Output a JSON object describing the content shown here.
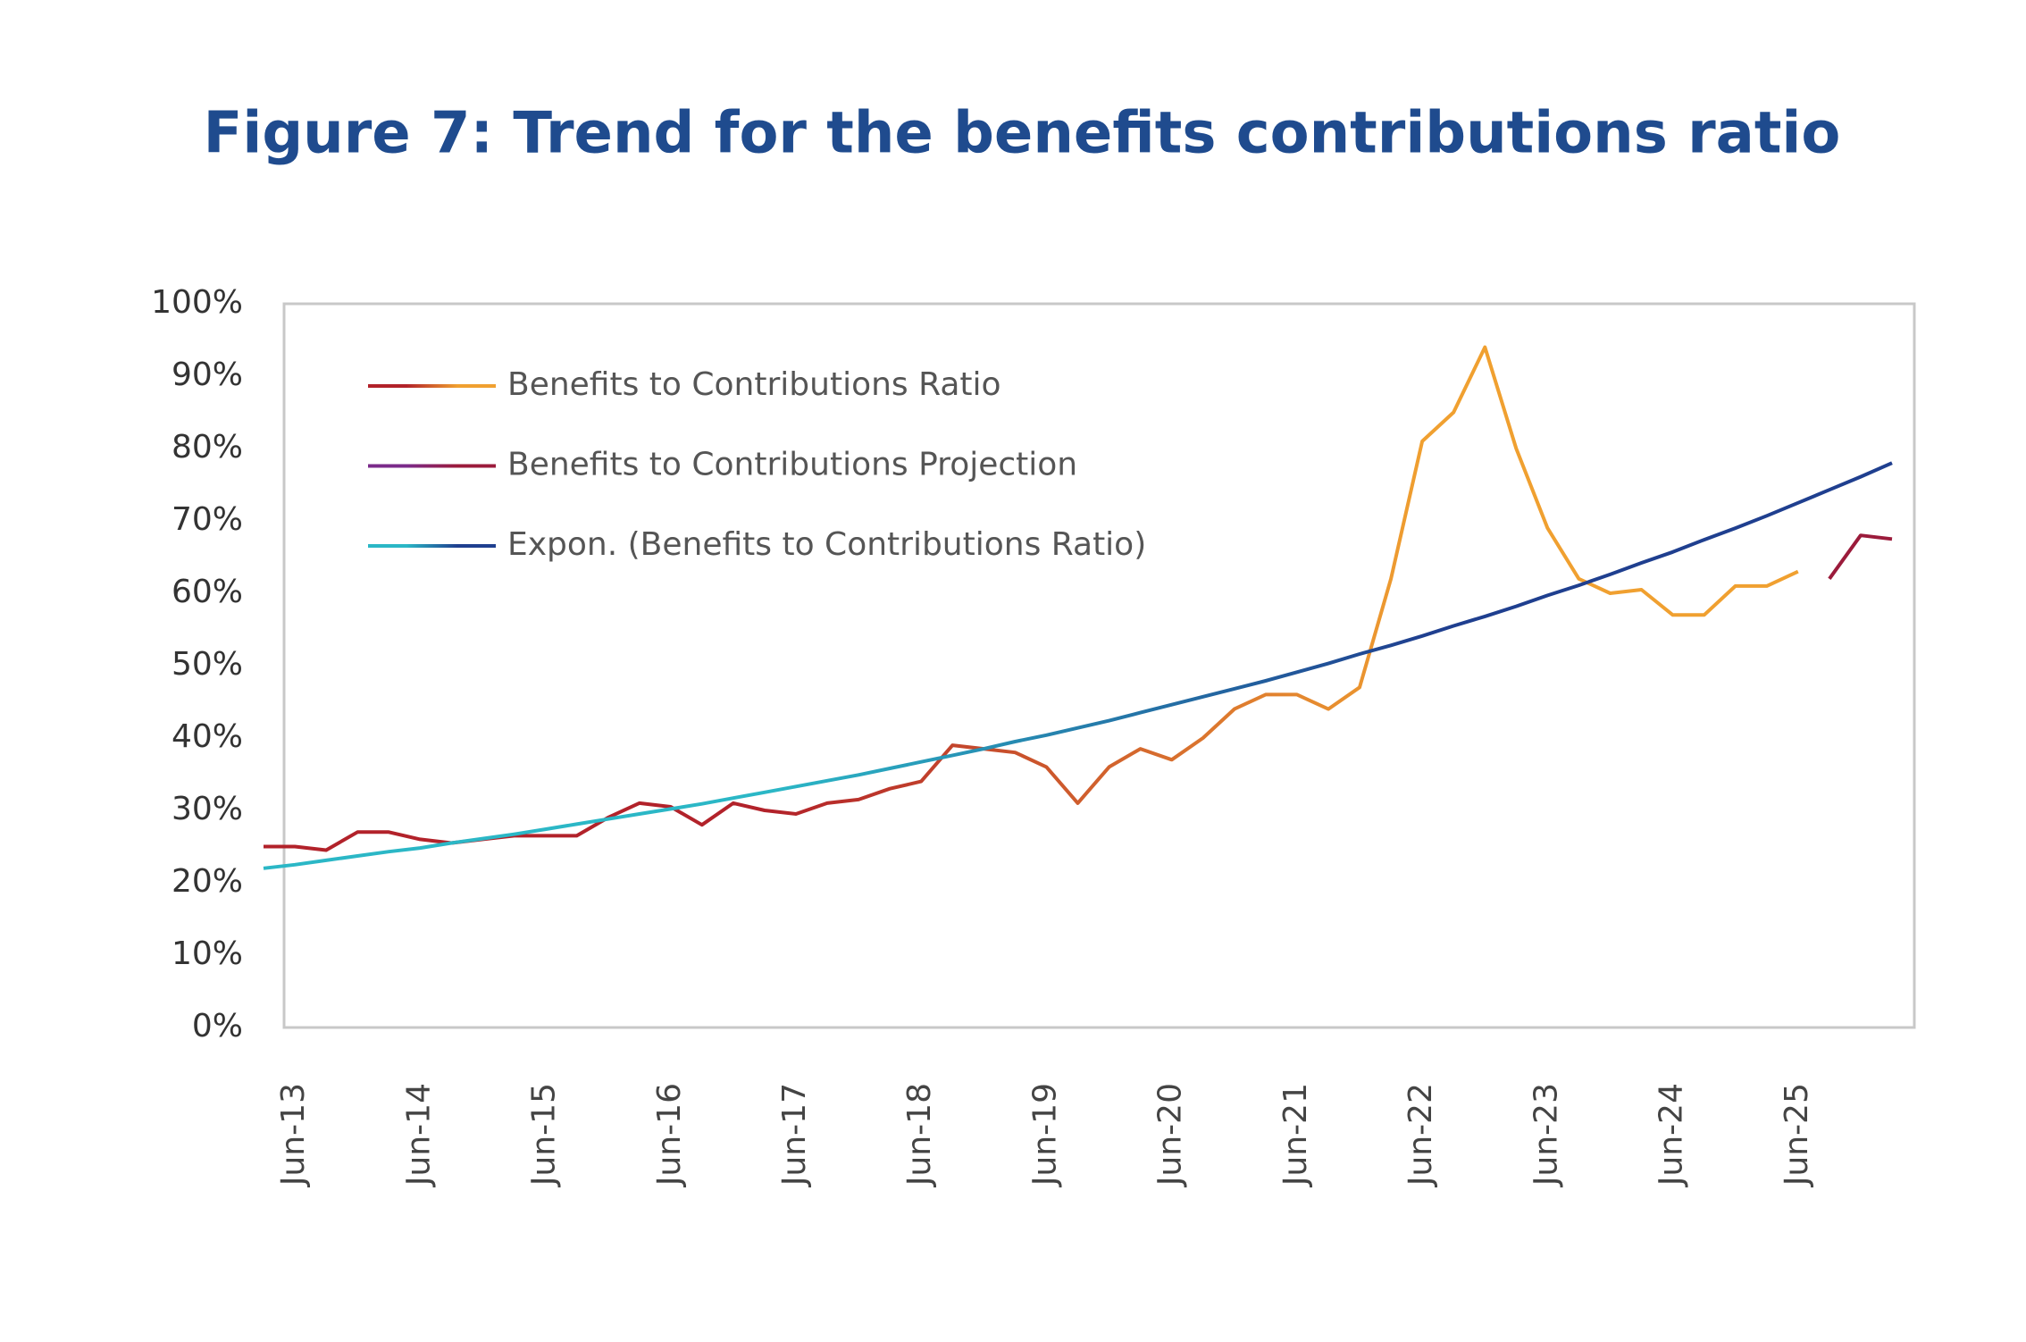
{
  "chart_data": {
    "type": "line",
    "title": "Figure 7: Trend for the benefits contributions ratio",
    "categories": [
      null,
      "Jun-13",
      null,
      null,
      null,
      "Jun-14",
      null,
      null,
      null,
      "Jun-15",
      null,
      null,
      null,
      "Jun-16",
      null,
      null,
      null,
      "Jun-17",
      null,
      null,
      null,
      "Jun-18",
      null,
      null,
      null,
      "Jun-19",
      null,
      null,
      null,
      "Jun-20",
      null,
      null,
      null,
      "Jun-21",
      null,
      null,
      null,
      "Jun-22",
      null,
      null,
      null,
      "Jun-23",
      null,
      null,
      null,
      "Jun-24",
      null,
      null,
      null,
      "Jun-25",
      null,
      null,
      null
    ],
    "series": [
      {
        "name": "Benefits to Contributions Ratio",
        "color": [
          "#b2222a",
          "#f0a030"
        ],
        "values": [
          25,
          25,
          24.5,
          27,
          27,
          26,
          25.5,
          26,
          26.5,
          26.5,
          26.5,
          29,
          31,
          30.5,
          28,
          31,
          30,
          29.5,
          31,
          31.5,
          33,
          34,
          39,
          38.5,
          38,
          36,
          31,
          36,
          38.5,
          37,
          40,
          44,
          46,
          46,
          44,
          47,
          62,
          81,
          85,
          94,
          80,
          69,
          62,
          60,
          60.5,
          57,
          57,
          61,
          61,
          63,
          null,
          null,
          null
        ]
      },
      {
        "name": "Benefits to Contributions Projection",
        "color": [
          "#7a2a8a",
          "#9b1b3b"
        ],
        "values": [
          null,
          null,
          null,
          null,
          null,
          null,
          null,
          null,
          null,
          null,
          null,
          null,
          null,
          null,
          null,
          null,
          null,
          null,
          null,
          null,
          null,
          null,
          null,
          null,
          null,
          null,
          null,
          null,
          null,
          null,
          null,
          null,
          null,
          null,
          null,
          null,
          null,
          null,
          null,
          null,
          null,
          null,
          null,
          null,
          null,
          null,
          null,
          null,
          null,
          null,
          62,
          68,
          67.5
        ]
      },
      {
        "name": "Expon. (Benefits to Contributions Ratio)",
        "color": [
          "#2bb7c6",
          "#1f3f8f"
        ],
        "values": [
          22.0,
          22.5,
          23.1,
          23.7,
          24.3,
          24.8,
          25.5,
          26.1,
          26.7,
          27.4,
          28.1,
          28.8,
          29.5,
          30.2,
          30.9,
          31.7,
          32.5,
          33.3,
          34.1,
          34.9,
          35.8,
          36.7,
          37.6,
          38.5,
          39.5,
          40.4,
          41.4,
          42.4,
          43.5,
          44.6,
          45.7,
          46.8,
          47.9,
          49.1,
          50.3,
          51.6,
          52.8,
          54.1,
          55.5,
          56.8,
          58.2,
          59.7,
          61.1,
          62.6,
          64.2,
          65.7,
          67.4,
          69.0,
          70.7,
          72.5,
          74.3,
          76.1,
          78.0
        ]
      }
    ],
    "ylim": [
      0,
      100
    ],
    "yticks": [
      {
        "value": 0,
        "label": "0%"
      },
      {
        "value": 10,
        "label": "10%"
      },
      {
        "value": 20,
        "label": "20%"
      },
      {
        "value": 30,
        "label": "30%"
      },
      {
        "value": 40,
        "label": "40%"
      },
      {
        "value": 50,
        "label": "50%"
      },
      {
        "value": 60,
        "label": "60%"
      },
      {
        "value": 70,
        "label": "70%"
      },
      {
        "value": 80,
        "label": "80%"
      },
      {
        "value": 90,
        "label": "90%"
      },
      {
        "value": 100,
        "label": "100%"
      }
    ],
    "grid": false,
    "legend": "top-left"
  }
}
